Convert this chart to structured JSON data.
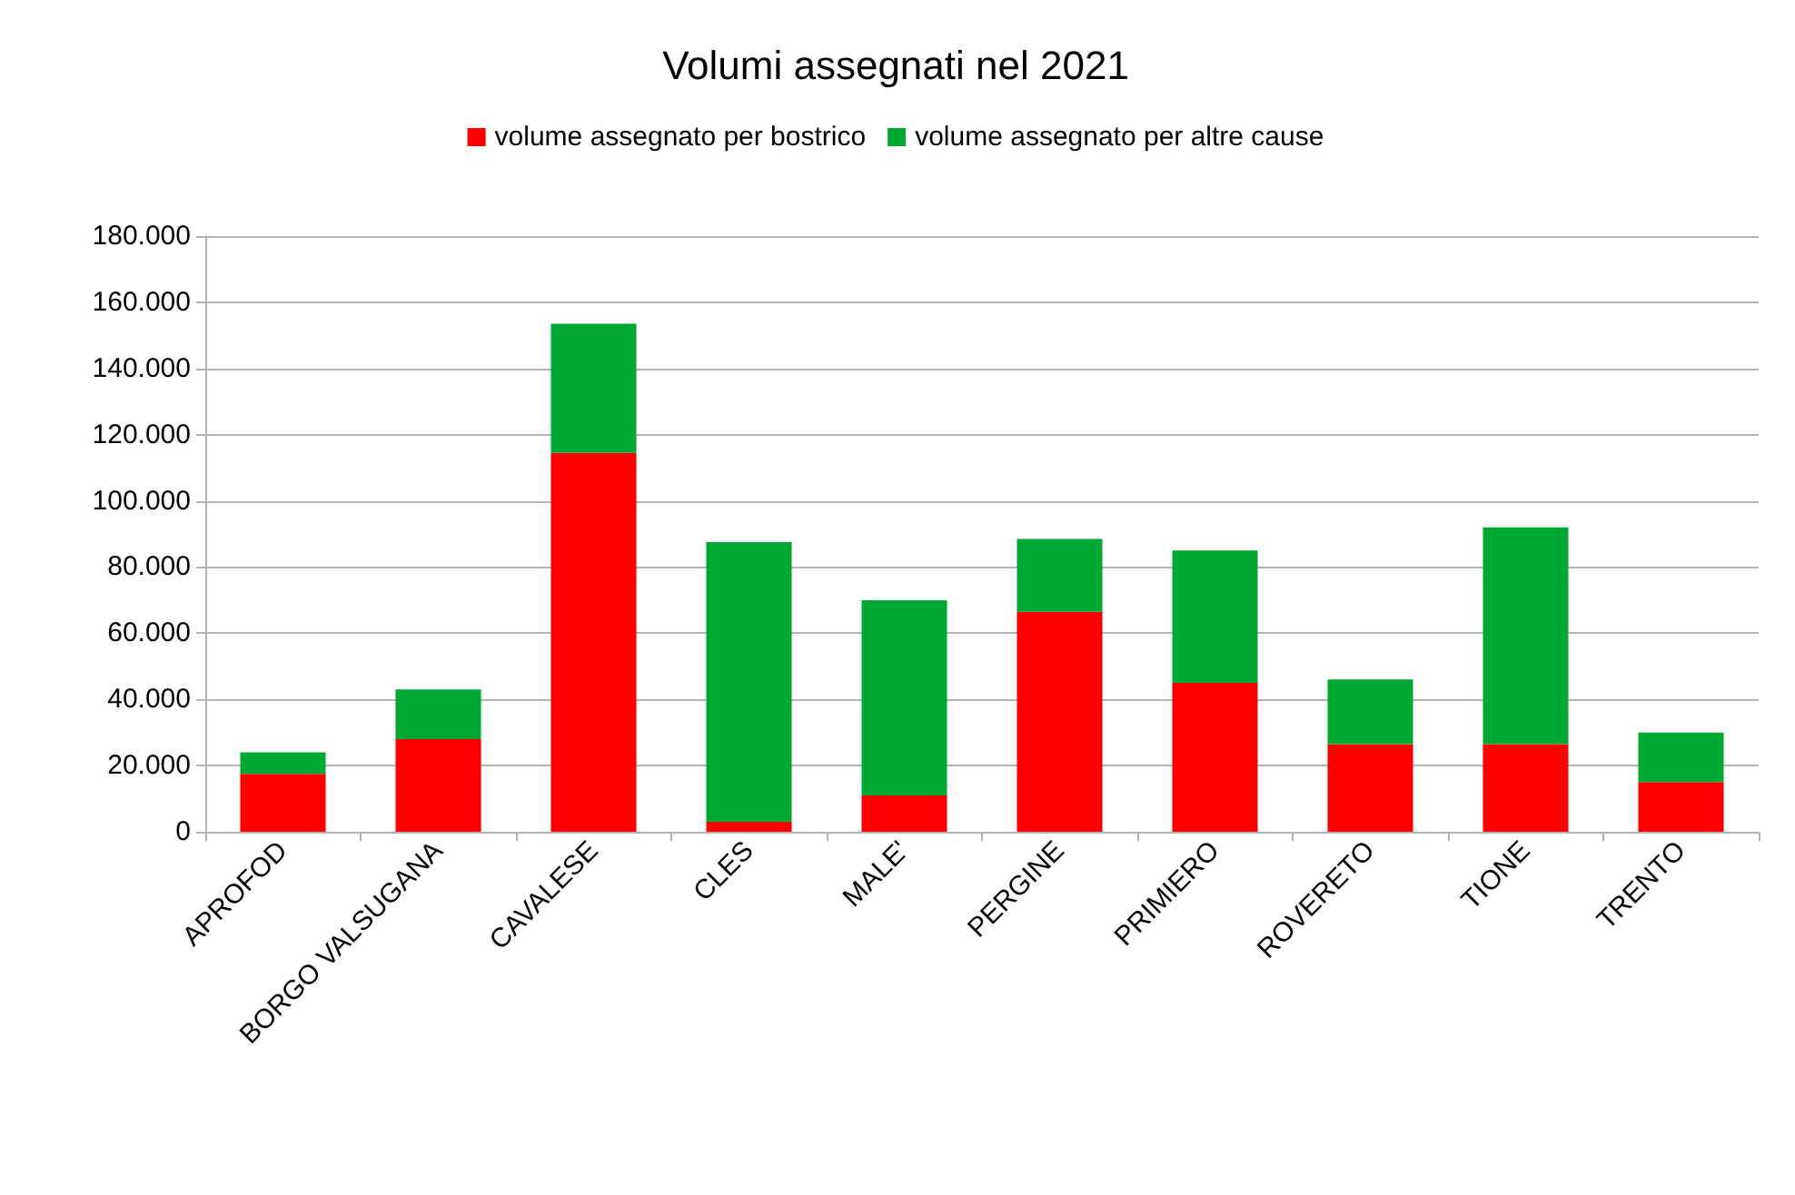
{
  "chart_data": {
    "type": "bar",
    "title": "Volumi assegnati nel 2021",
    "categories": [
      "APROFOD",
      "BORGO VALSUGANA",
      "CAVALESE",
      "CLES",
      "MALE'",
      "PERGINE",
      "PRIMIERO",
      "ROVERETO",
      "TIONE",
      "TRENTO"
    ],
    "stacked": true,
    "series": [
      {
        "name": "volume assegnato per bostrico",
        "color": "#ff0000",
        "values": [
          17500,
          28000,
          114500,
          3000,
          11000,
          66500,
          45000,
          26500,
          26500,
          15000
        ]
      },
      {
        "name": "volume assegnato per altre cause",
        "color": "#00a933",
        "values": [
          6500,
          15000,
          39000,
          84500,
          59000,
          22000,
          40000,
          19500,
          65500,
          15000
        ]
      }
    ],
    "ylim": [
      0,
      180000
    ],
    "yticks": [
      {
        "value": 0,
        "label": "0"
      },
      {
        "value": 20000,
        "label": "20.000"
      },
      {
        "value": 40000,
        "label": "40.000"
      },
      {
        "value": 60000,
        "label": "60.000"
      },
      {
        "value": 80000,
        "label": "80.000"
      },
      {
        "value": 100000,
        "label": "100.000"
      },
      {
        "value": 120000,
        "label": "120.000"
      },
      {
        "value": 140000,
        "label": "140.000"
      },
      {
        "value": 160000,
        "label": "160.000"
      },
      {
        "value": 180000,
        "label": "180.000"
      }
    ],
    "grid": "y",
    "legend": "top"
  }
}
